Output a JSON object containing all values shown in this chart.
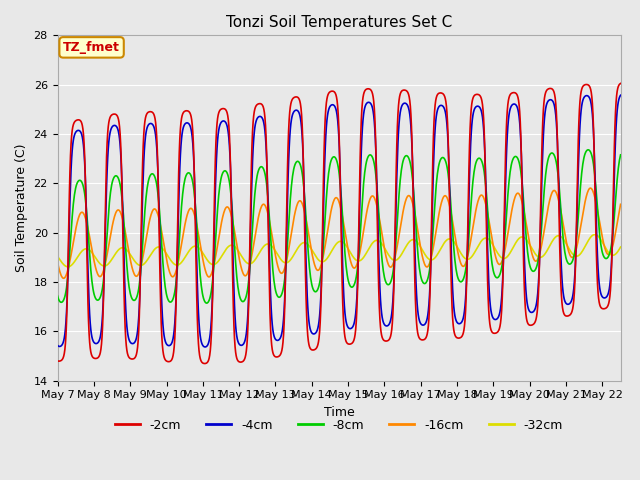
{
  "title": "Tonzi Soil Temperatures Set C",
  "xlabel": "Time",
  "ylabel": "Soil Temperature (C)",
  "ylim": [
    14,
    28
  ],
  "xtick_labels": [
    "May 7",
    "May 8",
    "May 9",
    "May 10",
    "May 11",
    "May 12",
    "May 13",
    "May 14",
    "May 15",
    "May 16",
    "May 17",
    "May 18",
    "May 19",
    "May 20",
    "May 21",
    "May 22"
  ],
  "series_colors": [
    "#dd0000",
    "#0000cc",
    "#00cc00",
    "#ff8800",
    "#dddd00"
  ],
  "series_labels": [
    "-2cm",
    "-4cm",
    "-8cm",
    "-16cm",
    "-32cm"
  ],
  "annotation_text": "TZ_fmet",
  "annotation_bg": "#ffffcc",
  "annotation_border": "#cc8800",
  "fig_bg": "#e8e8e8",
  "plot_bg": "#e8e8e8",
  "grid_color": "#ffffff",
  "title_fontsize": 11,
  "axis_label_fontsize": 9,
  "tick_fontsize": 8,
  "legend_fontsize": 9
}
